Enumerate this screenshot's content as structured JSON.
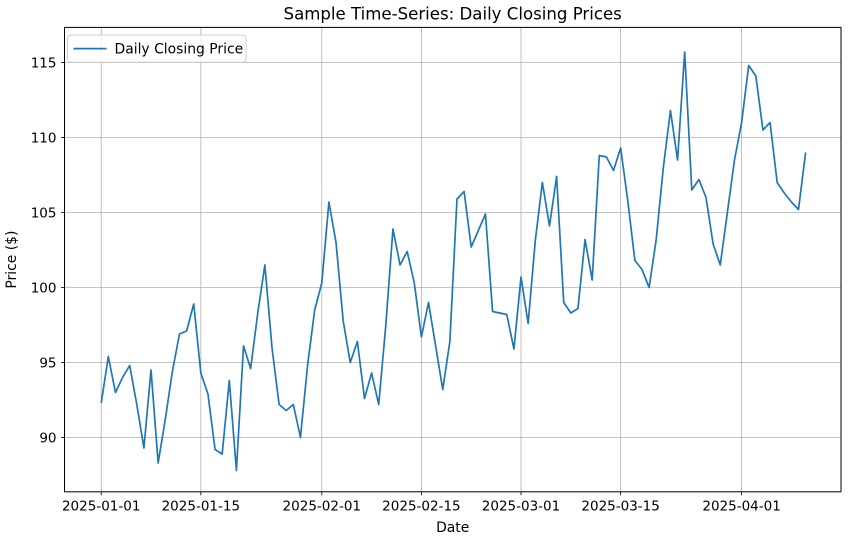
{
  "chart_data": {
    "type": "line",
    "title": "Sample Time-Series: Daily Closing Prices",
    "xlabel": "Date",
    "ylabel": "Price ($)",
    "legend": [
      "Daily Closing Price"
    ],
    "legend_position": "upper left",
    "grid": true,
    "line_color": "#1f77b4",
    "grid_color": "#b0b0b0",
    "spine_color": "#000000",
    "text_color": "#000000",
    "x_start": "2025-01-01",
    "x_end": "2025-04-10",
    "frequency": "daily",
    "n_points": 100,
    "xlim_days": [
      -5.16,
      103.97
    ],
    "ylim": [
      86.38,
      117.34
    ],
    "y_ticks": [
      90,
      95,
      100,
      105,
      110,
      115
    ],
    "x_ticks": [
      {
        "label": "2025-01-01",
        "day": 0
      },
      {
        "label": "2025-01-15",
        "day": 14
      },
      {
        "label": "2025-02-01",
        "day": 31
      },
      {
        "label": "2025-02-15",
        "day": 45
      },
      {
        "label": "2025-03-01",
        "day": 59
      },
      {
        "label": "2025-03-15",
        "day": 73
      },
      {
        "label": "2025-04-01",
        "day": 90
      }
    ],
    "values": [
      92.3,
      95.4,
      93.0,
      94.0,
      94.8,
      92.2,
      89.3,
      94.5,
      88.3,
      91.2,
      94.4,
      96.9,
      97.1,
      98.9,
      94.3,
      92.9,
      89.2,
      88.9,
      93.8,
      87.8,
      96.1,
      94.6,
      98.3,
      101.5,
      96.0,
      92.2,
      91.8,
      92.2,
      90.0,
      94.8,
      98.5,
      100.3,
      105.7,
      103.0,
      97.8,
      95.0,
      96.4,
      92.6,
      94.3,
      92.2,
      97.5,
      103.9,
      101.5,
      102.4,
      100.3,
      96.7,
      99.0,
      96.1,
      93.2,
      96.4,
      105.9,
      106.4,
      102.7,
      103.8,
      104.9,
      98.4,
      98.3,
      98.2,
      95.9,
      100.7,
      97.6,
      103.1,
      107.0,
      104.1,
      107.4,
      99.0,
      98.3,
      98.6,
      103.2,
      100.5,
      108.8,
      108.7,
      107.8,
      109.3,
      105.8,
      101.8,
      101.2,
      100.0,
      103.2,
      108.0,
      111.8,
      108.5,
      115.7,
      106.5,
      107.2,
      106.0,
      102.9,
      101.5,
      105.0,
      108.5,
      111.0,
      114.8,
      114.1,
      110.5,
      111.0,
      107.0,
      106.3,
      105.7,
      105.2,
      109.0
    ]
  }
}
